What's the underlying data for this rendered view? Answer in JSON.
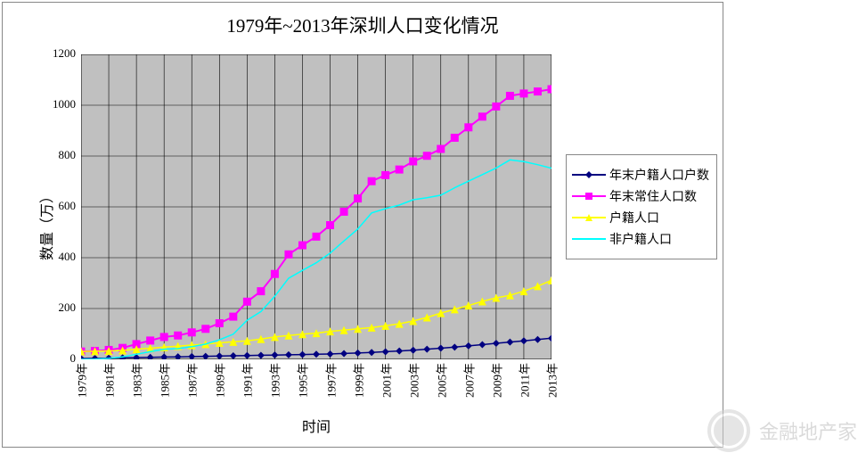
{
  "chart": {
    "type": "line",
    "title": "1979年~2013年深圳人口变化情况",
    "ylabel": "数量（万）",
    "xlabel": "时间",
    "title_fontsize": 21,
    "label_fontsize": 16,
    "legend_fontsize": 14,
    "tick_fontsize": 13,
    "background_color": "#c0c0c0",
    "grid_color": "#000000",
    "border_color": "#888888",
    "ylim": [
      0,
      1200
    ],
    "ytick_step": 200,
    "x_categories": [
      "1979年",
      "1980年",
      "1981年",
      "1982年",
      "1983年",
      "1984年",
      "1985年",
      "1986年",
      "1987年",
      "1988年",
      "1989年",
      "1990年",
      "1991年",
      "1992年",
      "1993年",
      "1994年",
      "1995年",
      "1996年",
      "1997年",
      "1998年",
      "1999年",
      "2000年",
      "2001年",
      "2002年",
      "2003年",
      "2004年",
      "2005年",
      "2006年",
      "2007年",
      "2008年",
      "2009年",
      "2010年",
      "2011年",
      "2012年",
      "2013年"
    ],
    "x_tick_every": 2,
    "x_tick_rotated": true,
    "series": [
      {
        "name": "年末户籍人口户数",
        "color": "#000080",
        "marker": "diamond",
        "marker_size": 5,
        "line_width": 1.5,
        "data": [
          3,
          4,
          5,
          6,
          7,
          8,
          9,
          10,
          11,
          12,
          13,
          14,
          15,
          16,
          17,
          18,
          19,
          20,
          21,
          23,
          25,
          27,
          30,
          33,
          36,
          40,
          44,
          48,
          53,
          58,
          63,
          68,
          73,
          78,
          83
        ]
      },
      {
        "name": "年末常住人口数",
        "color": "#ff00ff",
        "marker": "square",
        "marker_size": 6,
        "line_width": 2,
        "data": [
          31,
          33,
          37,
          45,
          60,
          74,
          88,
          94,
          106,
          120,
          142,
          168,
          227,
          268,
          336,
          413,
          449,
          483,
          528,
          581,
          633,
          701,
          725,
          747,
          779,
          801,
          828,
          872,
          913,
          955,
          995,
          1037,
          1046,
          1054,
          1063
        ]
      },
      {
        "name": "户籍人口",
        "color": "#ffff00",
        "marker": "triangle",
        "marker_size": 6,
        "line_width": 1.5,
        "data": [
          31,
          32,
          33,
          35,
          40,
          44,
          48,
          52,
          56,
          60,
          65,
          69,
          73,
          80,
          88,
          94,
          99,
          103,
          110,
          115,
          120,
          125,
          132,
          140,
          151,
          165,
          182,
          197,
          212,
          228,
          242,
          252,
          268,
          288,
          311
        ]
      },
      {
        "name": "非户籍人口",
        "color": "#00ffff",
        "marker": "none",
        "marker_size": 0,
        "line_width": 1.5,
        "data": [
          0,
          1,
          4,
          10,
          20,
          30,
          40,
          42,
          50,
          60,
          77,
          99,
          154,
          188,
          248,
          319,
          350,
          380,
          418,
          466,
          513,
          576,
          593,
          607,
          628,
          636,
          646,
          675,
          701,
          727,
          753,
          785,
          778,
          766,
          752
        ]
      }
    ],
    "legend_position": "right"
  },
  "watermark": {
    "text": "金融地产家"
  }
}
